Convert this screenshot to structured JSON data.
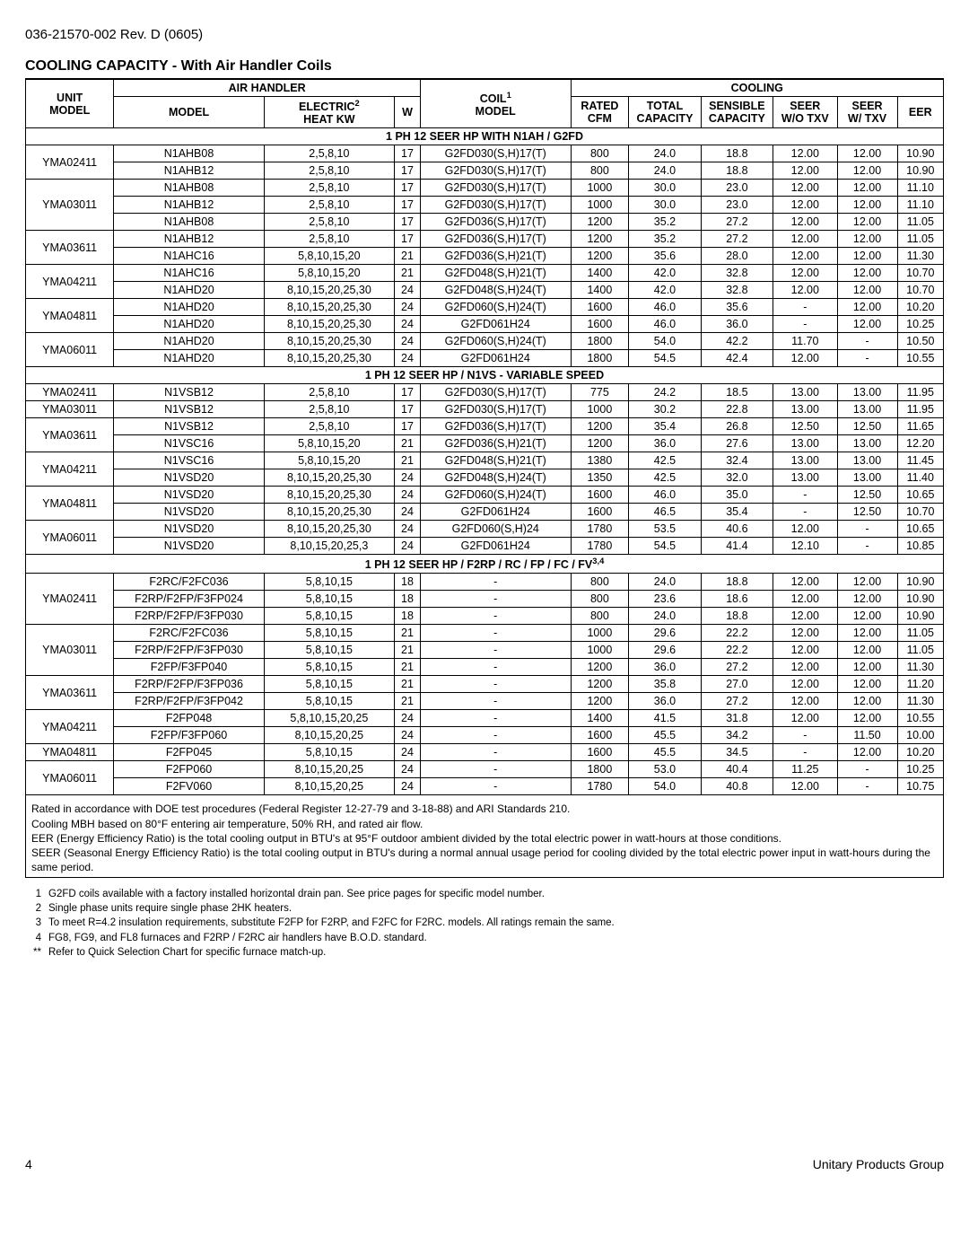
{
  "doc_header": "036-21570-002 Rev. D (0605)",
  "title": "COOLING CAPACITY - With Air Handler Coils",
  "header": {
    "unit_model": "UNIT MODEL",
    "air_handler": "AIR HANDLER",
    "model": "MODEL",
    "electric": "ELECTRIC",
    "electric_sup": "2",
    "heat_kw": "HEAT KW",
    "w": "W",
    "coil": "COIL",
    "coil_sup": "1",
    "coil_model": "MODEL",
    "cooling": "COOLING",
    "rated_cfm": "RATED CFM",
    "total_cap": "TOTAL CAPACITY",
    "sensible_cap": "SENSIBLE CAPACITY",
    "seer_wo": "SEER W/O TXV",
    "seer_w": "SEER W/ TXV",
    "eer": "EER"
  },
  "sections": [
    {
      "title": "1 PH 12 SEER HP WITH N1AH / G2FD",
      "rows": [
        {
          "unit": "YMA02411",
          "span": 2,
          "ah": "N1AHB08",
          "kw": "2,5,8,10",
          "w": "17",
          "coil": "G2FD030(S,H)17(T)",
          "cfm": "800",
          "tc": "24.0",
          "sc": "18.8",
          "swo": "12.00",
          "sw": "12.00",
          "eer": "10.90"
        },
        {
          "ah": "N1AHB12",
          "kw": "2,5,8,10",
          "w": "17",
          "coil": "G2FD030(S,H)17(T)",
          "cfm": "800",
          "tc": "24.0",
          "sc": "18.8",
          "swo": "12.00",
          "sw": "12.00",
          "eer": "10.90"
        },
        {
          "unit": "YMA03011",
          "span": 3,
          "ah": "N1AHB08",
          "kw": "2,5,8,10",
          "w": "17",
          "coil": "G2FD030(S,H)17(T)",
          "cfm": "1000",
          "tc": "30.0",
          "sc": "23.0",
          "swo": "12.00",
          "sw": "12.00",
          "eer": "11.10"
        },
        {
          "ah": "N1AHB12",
          "kw": "2,5,8,10",
          "w": "17",
          "coil": "G2FD030(S,H)17(T)",
          "cfm": "1000",
          "tc": "30.0",
          "sc": "23.0",
          "swo": "12.00",
          "sw": "12.00",
          "eer": "11.10"
        },
        {
          "ah": "N1AHB08",
          "kw": "2,5,8,10",
          "w": "17",
          "coil": "G2FD036(S,H)17(T)",
          "cfm": "1200",
          "tc": "35.2",
          "sc": "27.2",
          "swo": "12.00",
          "sw": "12.00",
          "eer": "11.05"
        },
        {
          "unit": "YMA03611",
          "span": 2,
          "ah": "N1AHB12",
          "kw": "2,5,8,10",
          "w": "17",
          "coil": "G2FD036(S,H)17(T)",
          "cfm": "1200",
          "tc": "35.2",
          "sc": "27.2",
          "swo": "12.00",
          "sw": "12.00",
          "eer": "11.05"
        },
        {
          "ah": "N1AHC16",
          "kw": "5,8,10,15,20",
          "w": "21",
          "coil": "G2FD036(S,H)21(T)",
          "cfm": "1200",
          "tc": "35.6",
          "sc": "28.0",
          "swo": "12.00",
          "sw": "12.00",
          "eer": "11.30"
        },
        {
          "unit": "YMA04211",
          "span": 2,
          "ah": "N1AHC16",
          "kw": "5,8,10,15,20",
          "w": "21",
          "coil": "G2FD048(S,H)21(T)",
          "cfm": "1400",
          "tc": "42.0",
          "sc": "32.8",
          "swo": "12.00",
          "sw": "12.00",
          "eer": "10.70"
        },
        {
          "ah": "N1AHD20",
          "kw": "8,10,15,20,25,30",
          "w": "24",
          "coil": "G2FD048(S,H)24(T)",
          "cfm": "1400",
          "tc": "42.0",
          "sc": "32.8",
          "swo": "12.00",
          "sw": "12.00",
          "eer": "10.70"
        },
        {
          "unit": "YMA04811",
          "span": 2,
          "ah": "N1AHD20",
          "kw": "8,10,15,20,25,30",
          "w": "24",
          "coil": "G2FD060(S,H)24(T)",
          "cfm": "1600",
          "tc": "46.0",
          "sc": "35.6",
          "swo": "-",
          "sw": "12.00",
          "eer": "10.20"
        },
        {
          "ah": "N1AHD20",
          "kw": "8,10,15,20,25,30",
          "w": "24",
          "coil": "G2FD061H24",
          "cfm": "1600",
          "tc": "46.0",
          "sc": "36.0",
          "swo": "-",
          "sw": "12.00",
          "eer": "10.25"
        },
        {
          "unit": "YMA06011",
          "span": 2,
          "ah": "N1AHD20",
          "kw": "8,10,15,20,25,30",
          "w": "24",
          "coil": "G2FD060(S,H)24(T)",
          "cfm": "1800",
          "tc": "54.0",
          "sc": "42.2",
          "swo": "11.70",
          "sw": "-",
          "eer": "10.50"
        },
        {
          "ah": "N1AHD20",
          "kw": "8,10,15,20,25,30",
          "w": "24",
          "coil": "G2FD061H24",
          "cfm": "1800",
          "tc": "54.5",
          "sc": "42.4",
          "swo": "12.00",
          "sw": "-",
          "eer": "10.55"
        }
      ]
    },
    {
      "title": "1 PH 12 SEER HP / N1VS - VARIABLE SPEED",
      "rows": [
        {
          "unit": "YMA02411",
          "span": 1,
          "ah": "N1VSB12",
          "kw": "2,5,8,10",
          "w": "17",
          "coil": "G2FD030(S,H)17(T)",
          "cfm": "775",
          "tc": "24.2",
          "sc": "18.5",
          "swo": "13.00",
          "sw": "13.00",
          "eer": "11.95"
        },
        {
          "unit": "YMA03011",
          "span": 1,
          "ah": "N1VSB12",
          "kw": "2,5,8,10",
          "w": "17",
          "coil": "G2FD030(S,H)17(T)",
          "cfm": "1000",
          "tc": "30.2",
          "sc": "22.8",
          "swo": "13.00",
          "sw": "13.00",
          "eer": "11.95"
        },
        {
          "unit": "YMA03611",
          "span": 2,
          "ah": "N1VSB12",
          "kw": "2,5,8,10",
          "w": "17",
          "coil": "G2FD036(S,H)17(T)",
          "cfm": "1200",
          "tc": "35.4",
          "sc": "26.8",
          "swo": "12.50",
          "sw": "12.50",
          "eer": "11.65"
        },
        {
          "ah": "N1VSC16",
          "kw": "5,8,10,15,20",
          "w": "21",
          "coil": "G2FD036(S,H)21(T)",
          "cfm": "1200",
          "tc": "36.0",
          "sc": "27.6",
          "swo": "13.00",
          "sw": "13.00",
          "eer": "12.20"
        },
        {
          "unit": "YMA04211",
          "span": 2,
          "ah": "N1VSC16",
          "kw": "5,8,10,15,20",
          "w": "21",
          "coil": "G2FD048(S,H)21(T)",
          "cfm": "1380",
          "tc": "42.5",
          "sc": "32.4",
          "swo": "13.00",
          "sw": "13.00",
          "eer": "11.45"
        },
        {
          "ah": "N1VSD20",
          "kw": "8,10,15,20,25,30",
          "w": "24",
          "coil": "G2FD048(S,H)24(T)",
          "cfm": "1350",
          "tc": "42.5",
          "sc": "32.0",
          "swo": "13.00",
          "sw": "13.00",
          "eer": "11.40"
        },
        {
          "unit": "YMA04811",
          "span": 2,
          "ah": "N1VSD20",
          "kw": "8,10,15,20,25,30",
          "w": "24",
          "coil": "G2FD060(S,H)24(T)",
          "cfm": "1600",
          "tc": "46.0",
          "sc": "35.0",
          "swo": "-",
          "sw": "12.50",
          "eer": "10.65"
        },
        {
          "ah": "N1VSD20",
          "kw": "8,10,15,20,25,30",
          "w": "24",
          "coil": "G2FD061H24",
          "cfm": "1600",
          "tc": "46.5",
          "sc": "35.4",
          "swo": "-",
          "sw": "12.50",
          "eer": "10.70"
        },
        {
          "unit": "YMA06011",
          "span": 2,
          "ah": "N1VSD20",
          "kw": "8,10,15,20,25,30",
          "w": "24",
          "coil": "G2FD060(S,H)24",
          "cfm": "1780",
          "tc": "53.5",
          "sc": "40.6",
          "swo": "12.00",
          "sw": "-",
          "eer": "10.65"
        },
        {
          "ah": "N1VSD20",
          "kw": "8,10,15,20,25,3",
          "w": "24",
          "coil": "G2FD061H24",
          "cfm": "1780",
          "tc": "54.5",
          "sc": "41.4",
          "swo": "12.10",
          "sw": "-",
          "eer": "10.85"
        }
      ]
    },
    {
      "title": "1 PH 12 SEER HP / F2RP / RC / FP / FC / FV",
      "title_sup": "3,4",
      "rows": [
        {
          "unit": "YMA02411",
          "span": 3,
          "ah": "F2RC/F2FC036",
          "kw": "5,8,10,15",
          "w": "18",
          "coil": "-",
          "cfm": "800",
          "tc": "24.0",
          "sc": "18.8",
          "swo": "12.00",
          "sw": "12.00",
          "eer": "10.90"
        },
        {
          "ah": "F2RP/F2FP/F3FP024",
          "kw": "5,8,10,15",
          "w": "18",
          "coil": "-",
          "cfm": "800",
          "tc": "23.6",
          "sc": "18.6",
          "swo": "12.00",
          "sw": "12.00",
          "eer": "10.90"
        },
        {
          "ah": "F2RP/F2FP/F3FP030",
          "kw": "5,8,10,15",
          "w": "18",
          "coil": "-",
          "cfm": "800",
          "tc": "24.0",
          "sc": "18.8",
          "swo": "12.00",
          "sw": "12.00",
          "eer": "10.90"
        },
        {
          "unit": "YMA03011",
          "span": 3,
          "ah": "F2RC/F2FC036",
          "kw": "5,8,10,15",
          "w": "21",
          "coil": "-",
          "cfm": "1000",
          "tc": "29.6",
          "sc": "22.2",
          "swo": "12.00",
          "sw": "12.00",
          "eer": "11.05"
        },
        {
          "ah": "F2RP/F2FP/F3FP030",
          "kw": "5,8,10,15",
          "w": "21",
          "coil": "-",
          "cfm": "1000",
          "tc": "29.6",
          "sc": "22.2",
          "swo": "12.00",
          "sw": "12.00",
          "eer": "11.05"
        },
        {
          "ah": "F2FP/F3FP040",
          "kw": "5,8,10,15",
          "w": "21",
          "coil": "-",
          "cfm": "1200",
          "tc": "36.0",
          "sc": "27.2",
          "swo": "12.00",
          "sw": "12.00",
          "eer": "11.30"
        },
        {
          "unit": "YMA03611",
          "span": 2,
          "ah": "F2RP/F2FP/F3FP036",
          "kw": "5,8,10,15",
          "w": "21",
          "coil": "-",
          "cfm": "1200",
          "tc": "35.8",
          "sc": "27.0",
          "swo": "12.00",
          "sw": "12.00",
          "eer": "11.20"
        },
        {
          "ah": "F2RP/F2FP/F3FP042",
          "kw": "5,8,10,15",
          "w": "21",
          "coil": "-",
          "cfm": "1200",
          "tc": "36.0",
          "sc": "27.2",
          "swo": "12.00",
          "sw": "12.00",
          "eer": "11.30"
        },
        {
          "unit": "YMA04211",
          "span": 2,
          "ah": "F2FP048",
          "kw": "5,8,10,15,20,25",
          "w": "24",
          "coil": "-",
          "cfm": "1400",
          "tc": "41.5",
          "sc": "31.8",
          "swo": "12.00",
          "sw": "12.00",
          "eer": "10.55"
        },
        {
          "ah": "F2FP/F3FP060",
          "kw": "8,10,15,20,25",
          "w": "24",
          "coil": "-",
          "cfm": "1600",
          "tc": "45.5",
          "sc": "34.2",
          "swo": "-",
          "sw": "11.50",
          "eer": "10.00"
        },
        {
          "unit": "YMA04811",
          "span": 1,
          "ah": "F2FP045",
          "kw": "5,8,10,15",
          "w": "24",
          "coil": "-",
          "cfm": "1600",
          "tc": "45.5",
          "sc": "34.5",
          "swo": "-",
          "sw": "12.00",
          "eer": "10.20"
        },
        {
          "unit": "YMA06011",
          "span": 2,
          "ah": "F2FP060",
          "kw": "8,10,15,20,25",
          "w": "24",
          "coil": "-",
          "cfm": "1800",
          "tc": "53.0",
          "sc": "40.4",
          "swo": "11.25",
          "sw": "-",
          "eer": "10.25"
        },
        {
          "ah": "F2FV060",
          "kw": "8,10,15,20,25",
          "w": "24",
          "coil": "-",
          "cfm": "1780",
          "tc": "54.0",
          "sc": "40.8",
          "swo": "12.00",
          "sw": "-",
          "eer": "10.75"
        }
      ]
    }
  ],
  "notes": [
    "Rated in accordance with DOE test procedures (Federal Register 12-27-79 and 3-18-88) and ARI Standards 210.",
    "Cooling MBH based on 80°F entering air temperature, 50% RH, and rated air flow.",
    "EER (Energy Efficiency Ratio) is the total cooling output in BTU's at 95°F outdoor ambient divided by the total electric power in watt-hours at those conditions.",
    "SEER (Seasonal Energy Efficiency Ratio) is the total cooling output in BTU's during a normal annual usage period for cooling divided by the total electric power input in watt-hours during the same period."
  ],
  "footnotes": [
    {
      "n": "1",
      "t": "G2FD coils available with a factory installed horizontal drain pan. See price pages for specific model number."
    },
    {
      "n": "2",
      "t": "Single phase units require single phase 2HK heaters."
    },
    {
      "n": "3",
      "t": "To meet R=4.2 insulation requirements, substitute F2FP for F2RP, and F2FC for F2RC. models. All ratings remain the same."
    },
    {
      "n": "4",
      "t": "FG8, FG9, and FL8 furnaces and F2RP / F2RC air handlers have B.O.D. standard."
    },
    {
      "n": "**",
      "t": "Refer to Quick Selection Chart for specific furnace match-up."
    }
  ],
  "footer": {
    "page": "4",
    "org": "Unitary Products Group"
  },
  "col_widths": [
    "88px",
    "150px",
    "130px",
    "26px",
    "150px",
    "58px",
    "72px",
    "72px",
    "64px",
    "60px",
    "46px"
  ]
}
